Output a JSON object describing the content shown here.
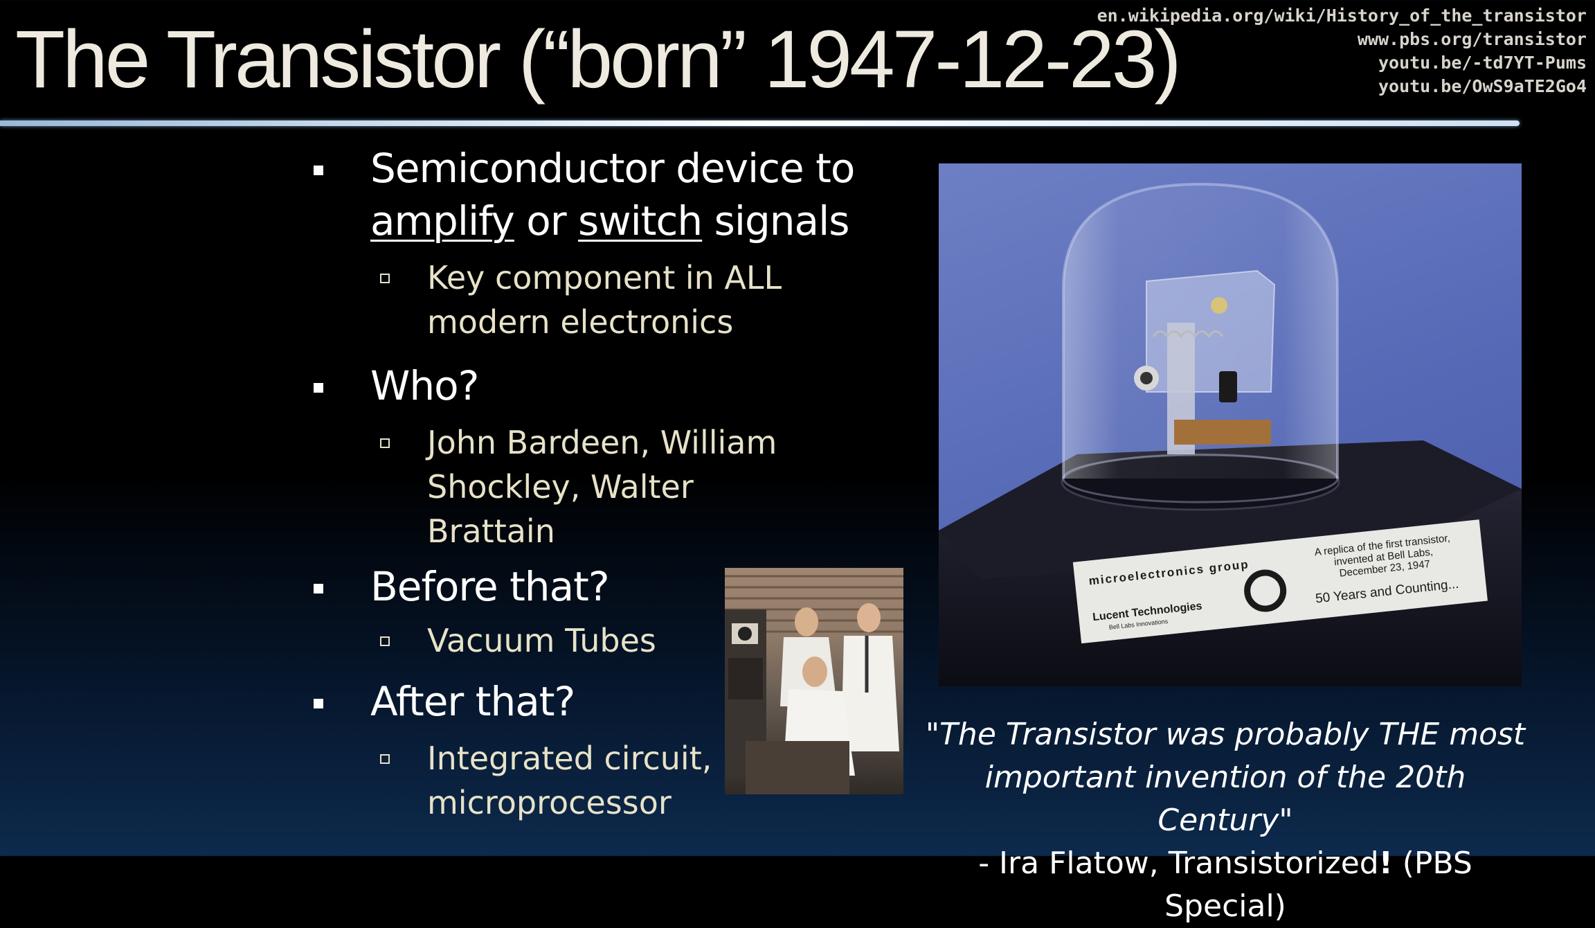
{
  "slide": {
    "title": "The Transistor (“born” 1947-12-23)",
    "links": [
      "en.wikipedia.org/wiki/History_of_the_transistor",
      "www.pbs.org/transistor",
      "youtu.be/-td7YT-Pums",
      "youtu.be/OwS9aTE2Go4"
    ]
  },
  "bullets": {
    "b1_pre": "Semiconductor device to ",
    "b1_amplify": "amplify",
    "b1_or": " or ",
    "b1_switch": "switch",
    "b1_post": " signals",
    "b1_sub": "Key component in ALL modern electronics",
    "b2": "Who?",
    "b2_sub": "John Bardeen, William Shockley, Walter Brattain",
    "b3": "Before that?",
    "b3_sub": "Vacuum Tubes",
    "b4": "After that?",
    "b4_sub": "Integrated circuit, microprocessor"
  },
  "plaque": {
    "group": "microelectronics group",
    "company": "Lucent Technologies",
    "tagline": "Bell Labs Innovations",
    "replica_line1": "A replica of the first transistor,",
    "replica_line2": "invented at Bell Labs,",
    "replica_line3": "December 23, 1947",
    "years": "50 Years and Counting..."
  },
  "quote": {
    "text": "\"The Transistor was probably THE most important invention of the 20th Century\"",
    "attribution_pre": "- Ira Flatow, Transistorized",
    "attribution_bang": "!",
    "attribution_post": " (PBS Special)"
  },
  "colors": {
    "title": "#eeeae0",
    "sub_text": "#e7e2c8",
    "photo_bg": "#5568b5"
  }
}
